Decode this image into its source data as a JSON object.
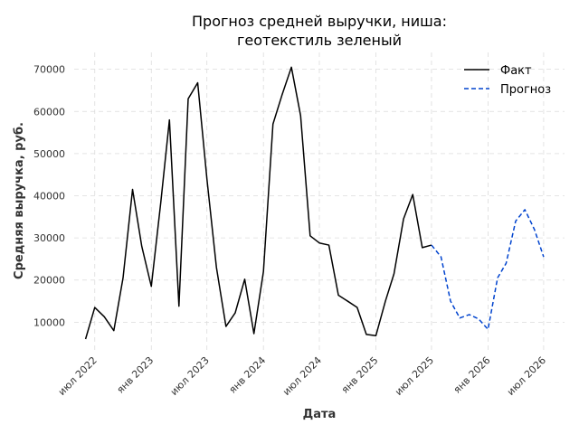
{
  "chart_data": {
    "type": "line",
    "title_lines": [
      "Прогноз средней выручки, ниша:",
      "геотекстиль зеленый"
    ],
    "xlabel": "Дата",
    "ylabel": "Средняя выручка, руб.",
    "x_ticks": [
      {
        "date": "2022-07-01",
        "label": "июл 2022"
      },
      {
        "date": "2023-01-01",
        "label": "янв 2023"
      },
      {
        "date": "2023-07-01",
        "label": "июл 2023"
      },
      {
        "date": "2024-01-01",
        "label": "янв 2024"
      },
      {
        "date": "2024-07-01",
        "label": "июл 2024"
      },
      {
        "date": "2025-01-01",
        "label": "янв 2025"
      },
      {
        "date": "2025-07-01",
        "label": "июл 2025"
      },
      {
        "date": "2026-01-01",
        "label": "янв 2026"
      },
      {
        "date": "2026-07-01",
        "label": "июл 2026"
      }
    ],
    "y_ticks": [
      {
        "value": 10000,
        "label": "10000"
      },
      {
        "value": 20000,
        "label": "20000"
      },
      {
        "value": 30000,
        "label": "30000"
      },
      {
        "value": 40000,
        "label": "40000"
      },
      {
        "value": 50000,
        "label": "50000"
      },
      {
        "value": 60000,
        "label": "60000"
      },
      {
        "value": 70000,
        "label": "70000"
      }
    ],
    "xlim": [
      "2022-04-25",
      "2026-09-07"
    ],
    "ylim": [
      3000,
      74000
    ],
    "grid": true,
    "legend_position": "top-right",
    "series": [
      {
        "name": "Факт",
        "color": "#000000",
        "dash": "solid",
        "points": [
          {
            "x": "2022-06-01",
            "y": 6000
          },
          {
            "x": "2022-07-01",
            "y": 13500
          },
          {
            "x": "2022-08-01",
            "y": 11300
          },
          {
            "x": "2022-09-01",
            "y": 8000
          },
          {
            "x": "2022-10-01",
            "y": 20500
          },
          {
            "x": "2022-11-01",
            "y": 41500
          },
          {
            "x": "2022-12-01",
            "y": 28000
          },
          {
            "x": "2023-01-01",
            "y": 18500
          },
          {
            "x": "2023-02-01",
            "y": 38500
          },
          {
            "x": "2023-03-01",
            "y": 58000
          },
          {
            "x": "2023-04-01",
            "y": 13800
          },
          {
            "x": "2023-05-01",
            "y": 63000
          },
          {
            "x": "2023-06-01",
            "y": 66800
          },
          {
            "x": "2023-07-01",
            "y": 44000
          },
          {
            "x": "2023-08-01",
            "y": 23000
          },
          {
            "x": "2023-09-01",
            "y": 9000
          },
          {
            "x": "2023-10-01",
            "y": 12200
          },
          {
            "x": "2023-11-01",
            "y": 20200
          },
          {
            "x": "2023-12-01",
            "y": 7300
          },
          {
            "x": "2024-01-01",
            "y": 22000
          },
          {
            "x": "2024-02-01",
            "y": 57000
          },
          {
            "x": "2024-03-01",
            "y": 63800
          },
          {
            "x": "2024-04-01",
            "y": 70500
          },
          {
            "x": "2024-05-01",
            "y": 59000
          },
          {
            "x": "2024-06-01",
            "y": 30500
          },
          {
            "x": "2024-07-01",
            "y": 28800
          },
          {
            "x": "2024-08-01",
            "y": 28300
          },
          {
            "x": "2024-09-01",
            "y": 16400
          },
          {
            "x": "2024-10-01",
            "y": 15000
          },
          {
            "x": "2024-11-01",
            "y": 13500
          },
          {
            "x": "2024-12-01",
            "y": 7100
          },
          {
            "x": "2025-01-01",
            "y": 6800
          },
          {
            "x": "2025-02-01",
            "y": 15000
          },
          {
            "x": "2025-03-01",
            "y": 21500
          },
          {
            "x": "2025-04-01",
            "y": 34500
          },
          {
            "x": "2025-05-01",
            "y": 40300
          },
          {
            "x": "2025-06-01",
            "y": 27700
          },
          {
            "x": "2025-07-01",
            "y": 28300
          }
        ]
      },
      {
        "name": "Прогноз",
        "color": "#0043ce",
        "dash": "dashed",
        "points": [
          {
            "x": "2025-07-01",
            "y": 28300
          },
          {
            "x": "2025-08-01",
            "y": 25500
          },
          {
            "x": "2025-09-01",
            "y": 15000
          },
          {
            "x": "2025-10-01",
            "y": 11000
          },
          {
            "x": "2025-11-01",
            "y": 11800
          },
          {
            "x": "2025-12-01",
            "y": 10800
          },
          {
            "x": "2026-01-01",
            "y": 8300
          },
          {
            "x": "2026-02-01",
            "y": 20500
          },
          {
            "x": "2026-03-01",
            "y": 24000
          },
          {
            "x": "2026-04-01",
            "y": 34000
          },
          {
            "x": "2026-05-01",
            "y": 36700
          },
          {
            "x": "2026-06-01",
            "y": 32000
          },
          {
            "x": "2026-07-01",
            "y": 25500
          }
        ]
      }
    ]
  }
}
